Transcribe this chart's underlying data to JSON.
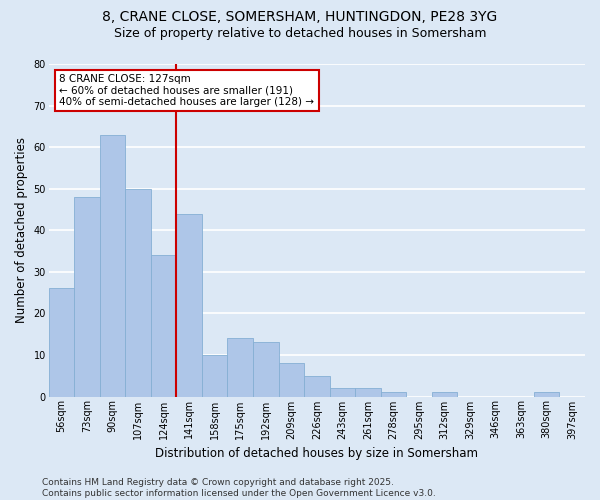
{
  "title1": "8, CRANE CLOSE, SOMERSHAM, HUNTINGDON, PE28 3YG",
  "title2": "Size of property relative to detached houses in Somersham",
  "xlabel": "Distribution of detached houses by size in Somersham",
  "ylabel": "Number of detached properties",
  "categories": [
    "56sqm",
    "73sqm",
    "90sqm",
    "107sqm",
    "124sqm",
    "141sqm",
    "158sqm",
    "175sqm",
    "192sqm",
    "209sqm",
    "226sqm",
    "243sqm",
    "261sqm",
    "278sqm",
    "295sqm",
    "312sqm",
    "329sqm",
    "346sqm",
    "363sqm",
    "380sqm",
    "397sqm"
  ],
  "values": [
    26,
    48,
    63,
    50,
    34,
    44,
    10,
    14,
    13,
    8,
    5,
    2,
    2,
    1,
    0,
    1,
    0,
    0,
    0,
    1,
    0
  ],
  "bar_color": "#aec6e8",
  "bar_edge_color": "#85afd4",
  "background_color": "#dce8f5",
  "fig_background_color": "#dce8f5",
  "grid_color": "#ffffff",
  "vline_x_index": 4,
  "vline_color": "#cc0000",
  "annotation_line1": "8 CRANE CLOSE: 127sqm",
  "annotation_line2": "← 60% of detached houses are smaller (191)",
  "annotation_line3": "40% of semi-detached houses are larger (128) →",
  "annotation_box_color": "#ffffff",
  "annotation_box_edge": "#cc0000",
  "ylim": [
    0,
    80
  ],
  "yticks": [
    0,
    10,
    20,
    30,
    40,
    50,
    60,
    70,
    80
  ],
  "title_fontsize": 10,
  "subtitle_fontsize": 9,
  "axis_label_fontsize": 8.5,
  "tick_fontsize": 7,
  "annotation_fontsize": 7.5,
  "footer": "Contains HM Land Registry data © Crown copyright and database right 2025.\nContains public sector information licensed under the Open Government Licence v3.0.",
  "footer_fontsize": 6.5
}
